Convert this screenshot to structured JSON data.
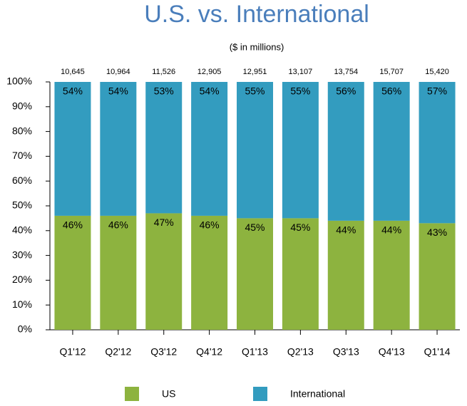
{
  "chart_data": {
    "type": "stacked-bar-100",
    "title": "U.S. vs. International",
    "subtitle": "($ in millions)",
    "categories": [
      "Q1'12",
      "Q2'12",
      "Q3'12",
      "Q4'12",
      "Q1'13",
      "Q2'13",
      "Q3'13",
      "Q4'13",
      "Q1'14"
    ],
    "totals": {
      "values": [
        10645,
        10964,
        11526,
        12905,
        12951,
        13107,
        13754,
        15707,
        15420
      ],
      "value_labels": [
        "10,645",
        "10,964",
        "11,526",
        "12,905",
        "12,951",
        "13,107",
        "13,754",
        "15,707",
        "15,420"
      ]
    },
    "series": [
      {
        "name": "US",
        "color": "#8db33f",
        "values": [
          46,
          46,
          47,
          46,
          45,
          45,
          44,
          44,
          43
        ],
        "value_labels": [
          "46%",
          "46%",
          "47%",
          "46%",
          "45%",
          "45%",
          "44%",
          "44%",
          "43%"
        ]
      },
      {
        "name": "International",
        "color": "#339cbf",
        "values": [
          54,
          54,
          53,
          54,
          55,
          55,
          56,
          56,
          57
        ],
        "value_labels": [
          "54%",
          "54%",
          "53%",
          "54%",
          "55%",
          "55%",
          "56%",
          "56%",
          "57%"
        ]
      }
    ],
    "ylim": [
      0,
      100
    ],
    "yticks": [
      {
        "value": 0,
        "label": "0%"
      },
      {
        "value": 10,
        "label": "10%"
      },
      {
        "value": 20,
        "label": "20%"
      },
      {
        "value": 30,
        "label": "30%"
      },
      {
        "value": 40,
        "label": "40%"
      },
      {
        "value": 50,
        "label": "50%"
      },
      {
        "value": 60,
        "label": "60%"
      },
      {
        "value": 70,
        "label": "70%"
      },
      {
        "value": 80,
        "label": "80%"
      },
      {
        "value": 90,
        "label": "90%"
      },
      {
        "value": 100,
        "label": "100%"
      }
    ]
  }
}
